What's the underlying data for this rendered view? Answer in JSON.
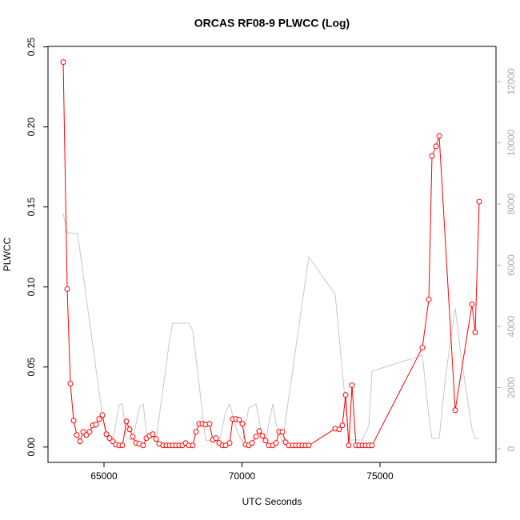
{
  "chart_data": {
    "type": "line",
    "title": "ORCAS RF08-9 PLWCC (Log)",
    "x_label": "UTC Seconds",
    "y_label": "PLWCC",
    "xlim": [
      62971,
      79203
    ],
    "xticks": [
      65000,
      70000,
      75000
    ],
    "ylim": [
      -0.0096,
      0.2503
    ],
    "yticks": [
      {
        "value": 0,
        "label": "0.00"
      },
      0.05,
      {
        "value": 0.1,
        "label": "0.10"
      },
      0.15,
      {
        "value": 0.2,
        "label": "0.20"
      },
      0.25
    ],
    "y2lim": [
      -444,
      13150
    ],
    "y2ticks": [
      0,
      2000,
      4000,
      6000,
      8000,
      10000,
      12000
    ],
    "series": [
      {
        "color": "#ff0000",
        "markers": true,
        "x": [
          63522,
          63667,
          63783,
          63899,
          64014,
          64130,
          64246,
          64362,
          64478,
          64594,
          64710,
          64826,
          64942,
          65087,
          65203,
          65319,
          65435,
          65551,
          65667,
          65812,
          65928,
          66043,
          66159,
          66275,
          66420,
          66536,
          66652,
          66768,
          66884,
          67000,
          67145,
          67261,
          67377,
          67493,
          67609,
          67725,
          67841,
          67957,
          68072,
          68217,
          68333,
          68449,
          68565,
          68681,
          68826,
          68942,
          69058,
          69174,
          69290,
          69406,
          69551,
          69667,
          69783,
          69899,
          70014,
          70130,
          70246,
          70362,
          70507,
          70623,
          70739,
          70855,
          70971,
          71116,
          71232,
          71348,
          71464,
          71580,
          71696,
          71841,
          71957,
          72072,
          72188,
          72304,
          72420,
          73377,
          73522,
          73638,
          73754,
          73870,
          73986,
          74130,
          74246,
          74362,
          74478,
          74594,
          74710,
          76536,
          76768,
          76884,
          77029,
          77145,
          77725,
          78333,
          78449,
          78594
        ],
        "values": [
          0.2405,
          0.0987,
          0.0396,
          0.0165,
          0.0075,
          0.0035,
          0.0095,
          0.0075,
          0.0095,
          0.0135,
          0.014,
          0.0175,
          0.02,
          0.008,
          0.0055,
          0.0035,
          0.0015,
          0.001,
          0.001,
          0.016,
          0.011,
          0.0065,
          0.0025,
          0.002,
          0.001,
          0.0055,
          0.007,
          0.008,
          0.005,
          0.002,
          0.001,
          0.001,
          0.001,
          0.001,
          0.001,
          0.001,
          0.001,
          0.0025,
          0.001,
          0.001,
          0.0095,
          0.0145,
          0.0145,
          0.014,
          0.0145,
          0.0045,
          0.0055,
          0.0025,
          0.001,
          0.001,
          0.0025,
          0.0175,
          0.0175,
          0.017,
          0.0145,
          0.0015,
          0.001,
          0.0025,
          0.0065,
          0.01,
          0.007,
          0.004,
          0.001,
          0.001,
          0.0025,
          0.0095,
          0.0095,
          0.003,
          0.001,
          0.001,
          0.001,
          0.001,
          0.001,
          0.001,
          0.001,
          0.0115,
          0.011,
          0.0135,
          0.0326,
          0.001,
          0.0386,
          0.001,
          0.001,
          0.001,
          0.001,
          0.001,
          0.001,
          0.0621,
          0.0922,
          0.1819,
          0.1879,
          0.1944,
          0.023,
          0.0892,
          0.0716,
          0.1533
        ]
      },
      {
        "color": "#c8c8c8",
        "axis": "y2",
        "markers": false,
        "x": [
          63522,
          63667,
          64043,
          64942,
          65087,
          65319,
          65551,
          65667,
          65812,
          66043,
          66275,
          66420,
          66536,
          66884,
          67377,
          67493,
          68072,
          68217,
          68681,
          69174,
          69406,
          69551,
          69783,
          70014,
          70246,
          70507,
          70739,
          70855,
          70971,
          71116,
          71232,
          71464,
          72420,
          73377,
          73870,
          74130,
          74362,
          74594,
          74710,
          76536,
          76768,
          76884,
          77145,
          77377,
          77725,
          77957,
          78333,
          78449,
          78594
        ],
        "values": [
          7685,
          7058,
          7032,
          1072,
          418,
          288,
          1438,
          1464,
          340,
          288,
          1333,
          1464,
          549,
          261,
          3555,
          4104,
          4104,
          3869,
          288,
          209,
          1202,
          1464,
          680,
          209,
          1333,
          1464,
          340,
          209,
          810,
          1464,
          810,
          209,
          6274,
          5045,
          288,
          288,
          288,
          758,
          2536,
          3058,
          1072,
          340,
          340,
          2379,
          4601,
          2902,
          653,
          340,
          340
        ]
      }
    ]
  }
}
